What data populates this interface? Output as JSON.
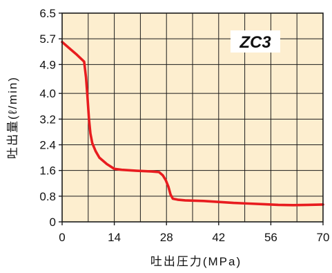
{
  "chart_data": {
    "type": "line",
    "title": "",
    "xlabel": "吐出圧力(MPa)",
    "ylabel": "吐出量(ℓ/min)",
    "xlim": [
      0,
      70
    ],
    "ylim": [
      0,
      6.5
    ],
    "x_ticks": [
      "0",
      "14",
      "28",
      "42",
      "56",
      "70"
    ],
    "x_tick_values": [
      0,
      14,
      28,
      42,
      56,
      70
    ],
    "y_ticks": [
      "0",
      "0.8",
      "1.6",
      "2.4",
      "3.2",
      "4.0",
      "4.9",
      "5.7",
      "6.5"
    ],
    "y_tick_values": [
      0,
      0.8,
      1.6,
      2.4,
      3.2,
      4.0,
      4.9,
      5.7,
      6.5
    ],
    "grid": true,
    "x_grid_step": 7,
    "annotation": "ZC3",
    "colors": {
      "plot_background": "#fdeecf",
      "grid": "#1a1a1a",
      "line": "#e81c1f",
      "annotation_box": "#ffffff"
    },
    "series": [
      {
        "x": [
          0,
          2,
          4,
          5.9,
          6.4,
          6.8,
          7.2,
          7.6,
          8.1,
          9,
          10,
          12,
          14,
          16,
          20,
          24,
          26,
          27,
          27.8,
          28.5,
          29.1,
          29.7,
          31,
          33,
          38,
          42,
          46,
          50,
          54,
          58,
          62,
          66,
          70
        ],
        "y": [
          5.6,
          5.4,
          5.2,
          4.99,
          4.5,
          3.9,
          3.2,
          2.75,
          2.45,
          2.2,
          2.0,
          1.8,
          1.65,
          1.62,
          1.59,
          1.57,
          1.55,
          1.45,
          1.3,
          1.1,
          0.85,
          0.72,
          0.69,
          0.67,
          0.65,
          0.62,
          0.59,
          0.57,
          0.55,
          0.53,
          0.52,
          0.53,
          0.54
        ]
      }
    ]
  }
}
